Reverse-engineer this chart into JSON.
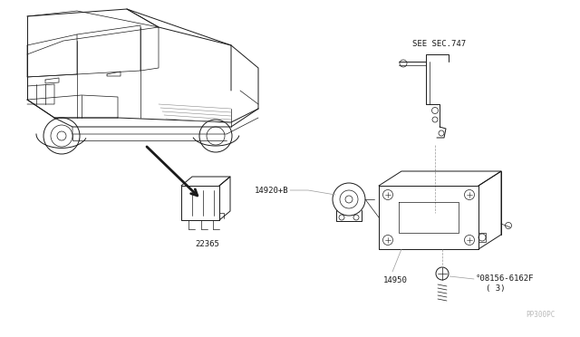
{
  "background_color": "#ffffff",
  "line_color": "#1a1a1a",
  "gray_color": "#999999",
  "fig_width": 6.4,
  "fig_height": 3.72,
  "dpi": 100,
  "labels": {
    "see_sec": "SEE SEC.747",
    "part_14920": "14920+B",
    "part_14950": "14950",
    "part_22365": "22365",
    "part_bolt": "°08156-6162F",
    "part_bolt_qty": "( 3)",
    "watermark": "PP300PC"
  }
}
